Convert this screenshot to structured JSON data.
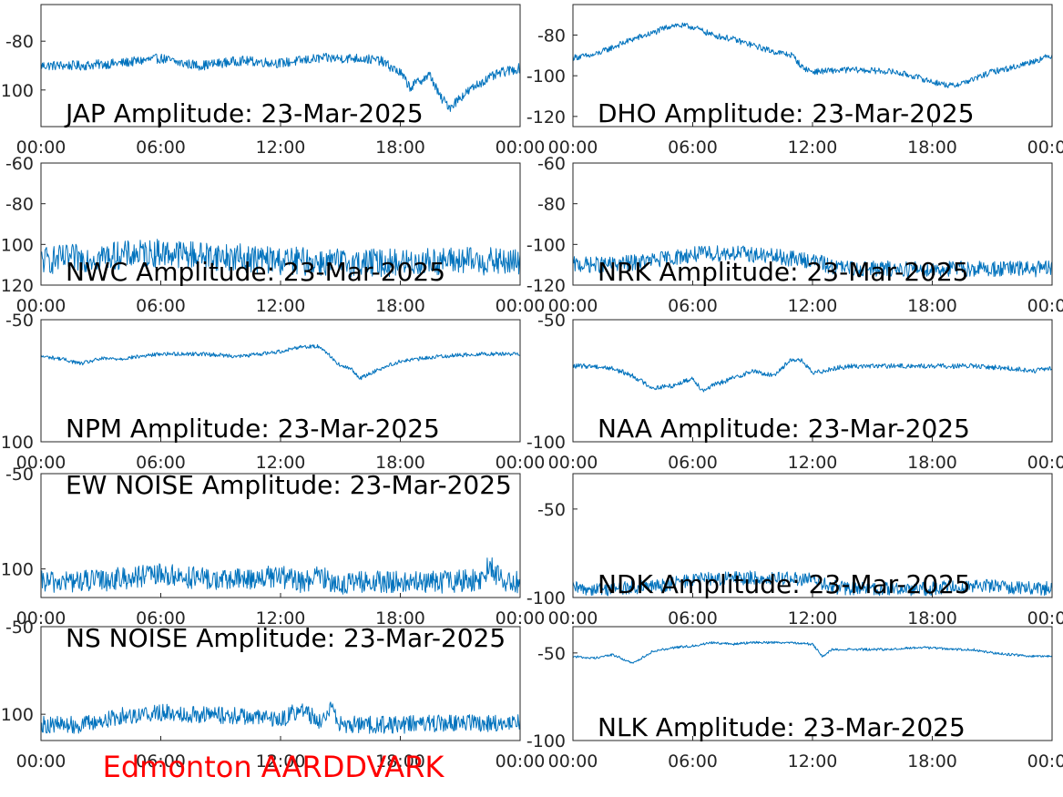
{
  "footer_title": "Edmonton AARDDVARK",
  "colors": {
    "line": "#0072bd",
    "footer": "#ff0000",
    "axes": "#262626"
  },
  "chart_data": [
    {
      "type": "line",
      "title": "JAP Amplitude: 23-Mar-2025",
      "x_ticks": [
        "00:00",
        "06:00",
        "12:00",
        "18:00",
        "00:00"
      ],
      "ylim": [
        -115,
        -65
      ],
      "y_ticks": [
        -80,
        -100
      ],
      "y_tick_labels": [
        "-80",
        "-100"
      ],
      "noise": 2,
      "series": [
        {
          "x": [
            0,
            2,
            4,
            6,
            7,
            8,
            10,
            12,
            14,
            16,
            17,
            18,
            18.5,
            19,
            19.5,
            20,
            20.5,
            21,
            22,
            23,
            24
          ],
          "y": [
            -90,
            -90,
            -89,
            -87,
            -89,
            -90,
            -88,
            -89,
            -87,
            -87,
            -88,
            -93,
            -99,
            -96,
            -94,
            -103,
            -107,
            -103,
            -97,
            -93,
            -91
          ]
        }
      ]
    },
    {
      "type": "line",
      "title": "DHO Amplitude: 23-Mar-2025",
      "x_ticks": [
        "00:00",
        "06:00",
        "12:00",
        "18:00",
        "00:00"
      ],
      "ylim": [
        -125,
        -65
      ],
      "y_ticks": [
        -80,
        -100,
        -120
      ],
      "y_tick_labels": [
        "-80",
        "-100",
        "-120"
      ],
      "noise": 1.5,
      "series": [
        {
          "x": [
            0,
            1,
            2,
            3,
            4,
            5,
            6,
            7,
            8,
            9,
            10,
            11,
            11.5,
            12,
            14,
            16,
            17,
            18,
            19,
            20,
            21,
            22,
            23,
            24
          ],
          "y": [
            -91,
            -90,
            -86,
            -82,
            -79,
            -75,
            -76,
            -80,
            -82,
            -85,
            -88,
            -90,
            -96,
            -98,
            -97,
            -98,
            -100,
            -103,
            -105,
            -102,
            -98,
            -96,
            -93,
            -90
          ]
        }
      ]
    },
    {
      "type": "line",
      "title": "NWC Amplitude: 23-Mar-2025",
      "x_ticks": [
        "00:00",
        "06:00",
        "12:00",
        "18:00",
        "00:00"
      ],
      "ylim": [
        -120,
        -60
      ],
      "y_ticks": [
        -60,
        -80,
        -100,
        -120
      ],
      "y_tick_labels": [
        "-60",
        "-80",
        "-100",
        "-120"
      ],
      "noise": 7,
      "series": [
        {
          "x": [
            0,
            3,
            6,
            9,
            12,
            15,
            18,
            21,
            24
          ],
          "y": [
            -108,
            -106,
            -104,
            -106,
            -108,
            -109,
            -109,
            -108,
            -109
          ]
        }
      ]
    },
    {
      "type": "line",
      "title": "NRK Amplitude: 23-Mar-2025",
      "x_ticks": [
        "00:00",
        "06:00",
        "12:00",
        "18:00",
        "00:00"
      ],
      "ylim": [
        -120,
        -60
      ],
      "y_ticks": [
        -60,
        -80,
        -100,
        -120
      ],
      "y_tick_labels": [
        "-60",
        "-80",
        "-100",
        "-120"
      ],
      "noise": 4,
      "series": [
        {
          "x": [
            0,
            2,
            4,
            6,
            8,
            10,
            12,
            13,
            14,
            16,
            18,
            20,
            22,
            24
          ],
          "y": [
            -110,
            -110,
            -108,
            -105,
            -104,
            -106,
            -108,
            -111,
            -112,
            -112,
            -112,
            -112,
            -112,
            -112
          ]
        }
      ]
    },
    {
      "type": "line",
      "title": "NPM Amplitude: 23-Mar-2025",
      "x_ticks": [
        "00:00",
        "06:00",
        "12:00",
        "18:00",
        "00:00"
      ],
      "ylim": [
        -100,
        -50
      ],
      "y_ticks": [
        -50,
        -100
      ],
      "y_tick_labels": [
        "-50",
        "-100"
      ],
      "noise": 0.8,
      "series": [
        {
          "x": [
            0,
            1,
            2,
            3,
            4,
            6,
            8,
            10,
            12,
            13,
            14,
            14.5,
            15,
            15.5,
            16,
            16.5,
            17,
            18,
            20,
            22,
            24
          ],
          "y": [
            -65,
            -66,
            -68,
            -66,
            -66,
            -64,
            -64,
            -65,
            -63,
            -61,
            -61,
            -65,
            -69,
            -70,
            -74,
            -72,
            -70,
            -67,
            -65,
            -64,
            -64
          ]
        }
      ]
    },
    {
      "type": "line",
      "title": "NAA Amplitude: 23-Mar-2025",
      "x_ticks": [
        "00:00",
        "06:00",
        "12:00",
        "18:00",
        "00:00"
      ],
      "ylim": [
        -100,
        -50
      ],
      "y_ticks": [
        -50,
        -100
      ],
      "y_tick_labels": [
        "-50",
        "-100"
      ],
      "noise": 1,
      "series": [
        {
          "x": [
            0,
            1,
            2,
            3,
            4,
            5,
            6,
            6.5,
            7,
            8,
            9,
            10,
            11,
            11.5,
            12,
            13,
            14,
            16,
            18,
            20,
            22,
            23,
            24
          ],
          "y": [
            -69,
            -69,
            -70,
            -73,
            -78,
            -77,
            -74,
            -79,
            -77,
            -74,
            -71,
            -73,
            -66,
            -67,
            -72,
            -70,
            -69,
            -69,
            -69,
            -69,
            -70,
            -71,
            -70
          ]
        }
      ]
    },
    {
      "type": "line",
      "title": "EW NOISE Amplitude: 23-Mar-2025",
      "x_ticks": [
        "00:00",
        "06:00",
        "12:00",
        "18:00",
        "00:00"
      ],
      "ylim": [
        -115,
        -50
      ],
      "y_ticks": [
        -50,
        -100
      ],
      "y_tick_labels": [
        "-50",
        "-100"
      ],
      "noise": 6,
      "series": [
        {
          "x": [
            0,
            3,
            6,
            9,
            12,
            13,
            14,
            15,
            16,
            18,
            20,
            22,
            22.5,
            23,
            24
          ],
          "y": [
            -107,
            -106,
            -103,
            -106,
            -104,
            -107,
            -104,
            -108,
            -107,
            -107,
            -107,
            -106,
            -97,
            -106,
            -107
          ]
        }
      ]
    },
    {
      "type": "line",
      "title": "NDK Amplitude: 23-Mar-2025",
      "x_ticks": [
        "00:00",
        "06:00",
        "12:00",
        "18:00",
        "00:00"
      ],
      "ylim": [
        -100,
        -30
      ],
      "y_ticks": [
        -50,
        -100
      ],
      "y_tick_labels": [
        "-50",
        "-100"
      ],
      "noise": 4,
      "series": [
        {
          "x": [
            0,
            2,
            4,
            6,
            8,
            10,
            12,
            13,
            14,
            16,
            18,
            20,
            22,
            24
          ],
          "y": [
            -95,
            -95,
            -94,
            -90,
            -89,
            -89,
            -90,
            -94,
            -95,
            -95,
            -95,
            -93,
            -94,
            -95
          ]
        }
      ]
    },
    {
      "type": "line",
      "title": "NS NOISE Amplitude: 23-Mar-2025",
      "x_ticks": [
        "00:00",
        "06:00",
        "12:00",
        "18:00",
        "00:00"
      ],
      "ylim": [
        -115,
        -50
      ],
      "y_ticks": [
        -50,
        -100
      ],
      "y_tick_labels": [
        "-50",
        "-100"
      ],
      "noise": 5,
      "series": [
        {
          "x": [
            0,
            2,
            3,
            4,
            6,
            8,
            10,
            12,
            13,
            14,
            14.5,
            15,
            16,
            18,
            20,
            22,
            24
          ],
          "y": [
            -106,
            -106,
            -104,
            -101,
            -99,
            -100,
            -101,
            -103,
            -97,
            -104,
            -97,
            -106,
            -106,
            -106,
            -105,
            -105,
            -105
          ]
        }
      ]
    },
    {
      "type": "line",
      "title": "NLK Amplitude: 23-Mar-2025",
      "x_ticks": [
        "00:00",
        "06:00",
        "12:00",
        "18:00",
        "00:00"
      ],
      "ylim": [
        -100,
        -35
      ],
      "y_ticks": [
        -50,
        -100
      ],
      "y_tick_labels": [
        "-50",
        "-100"
      ],
      "noise": 0.7,
      "series": [
        {
          "x": [
            0,
            1,
            2,
            3,
            4,
            5,
            6,
            7,
            8,
            9,
            10,
            11,
            12,
            12.5,
            13,
            14,
            15,
            16,
            17,
            18,
            19,
            20,
            21,
            22,
            23,
            24
          ],
          "y": [
            -52,
            -53,
            -51,
            -56,
            -49,
            -47,
            -46,
            -44,
            -45,
            -44,
            -44,
            -44,
            -45,
            -52,
            -48,
            -48,
            -48,
            -48,
            -47,
            -47,
            -48,
            -48,
            -50,
            -51,
            -52,
            -52
          ]
        }
      ]
    }
  ]
}
